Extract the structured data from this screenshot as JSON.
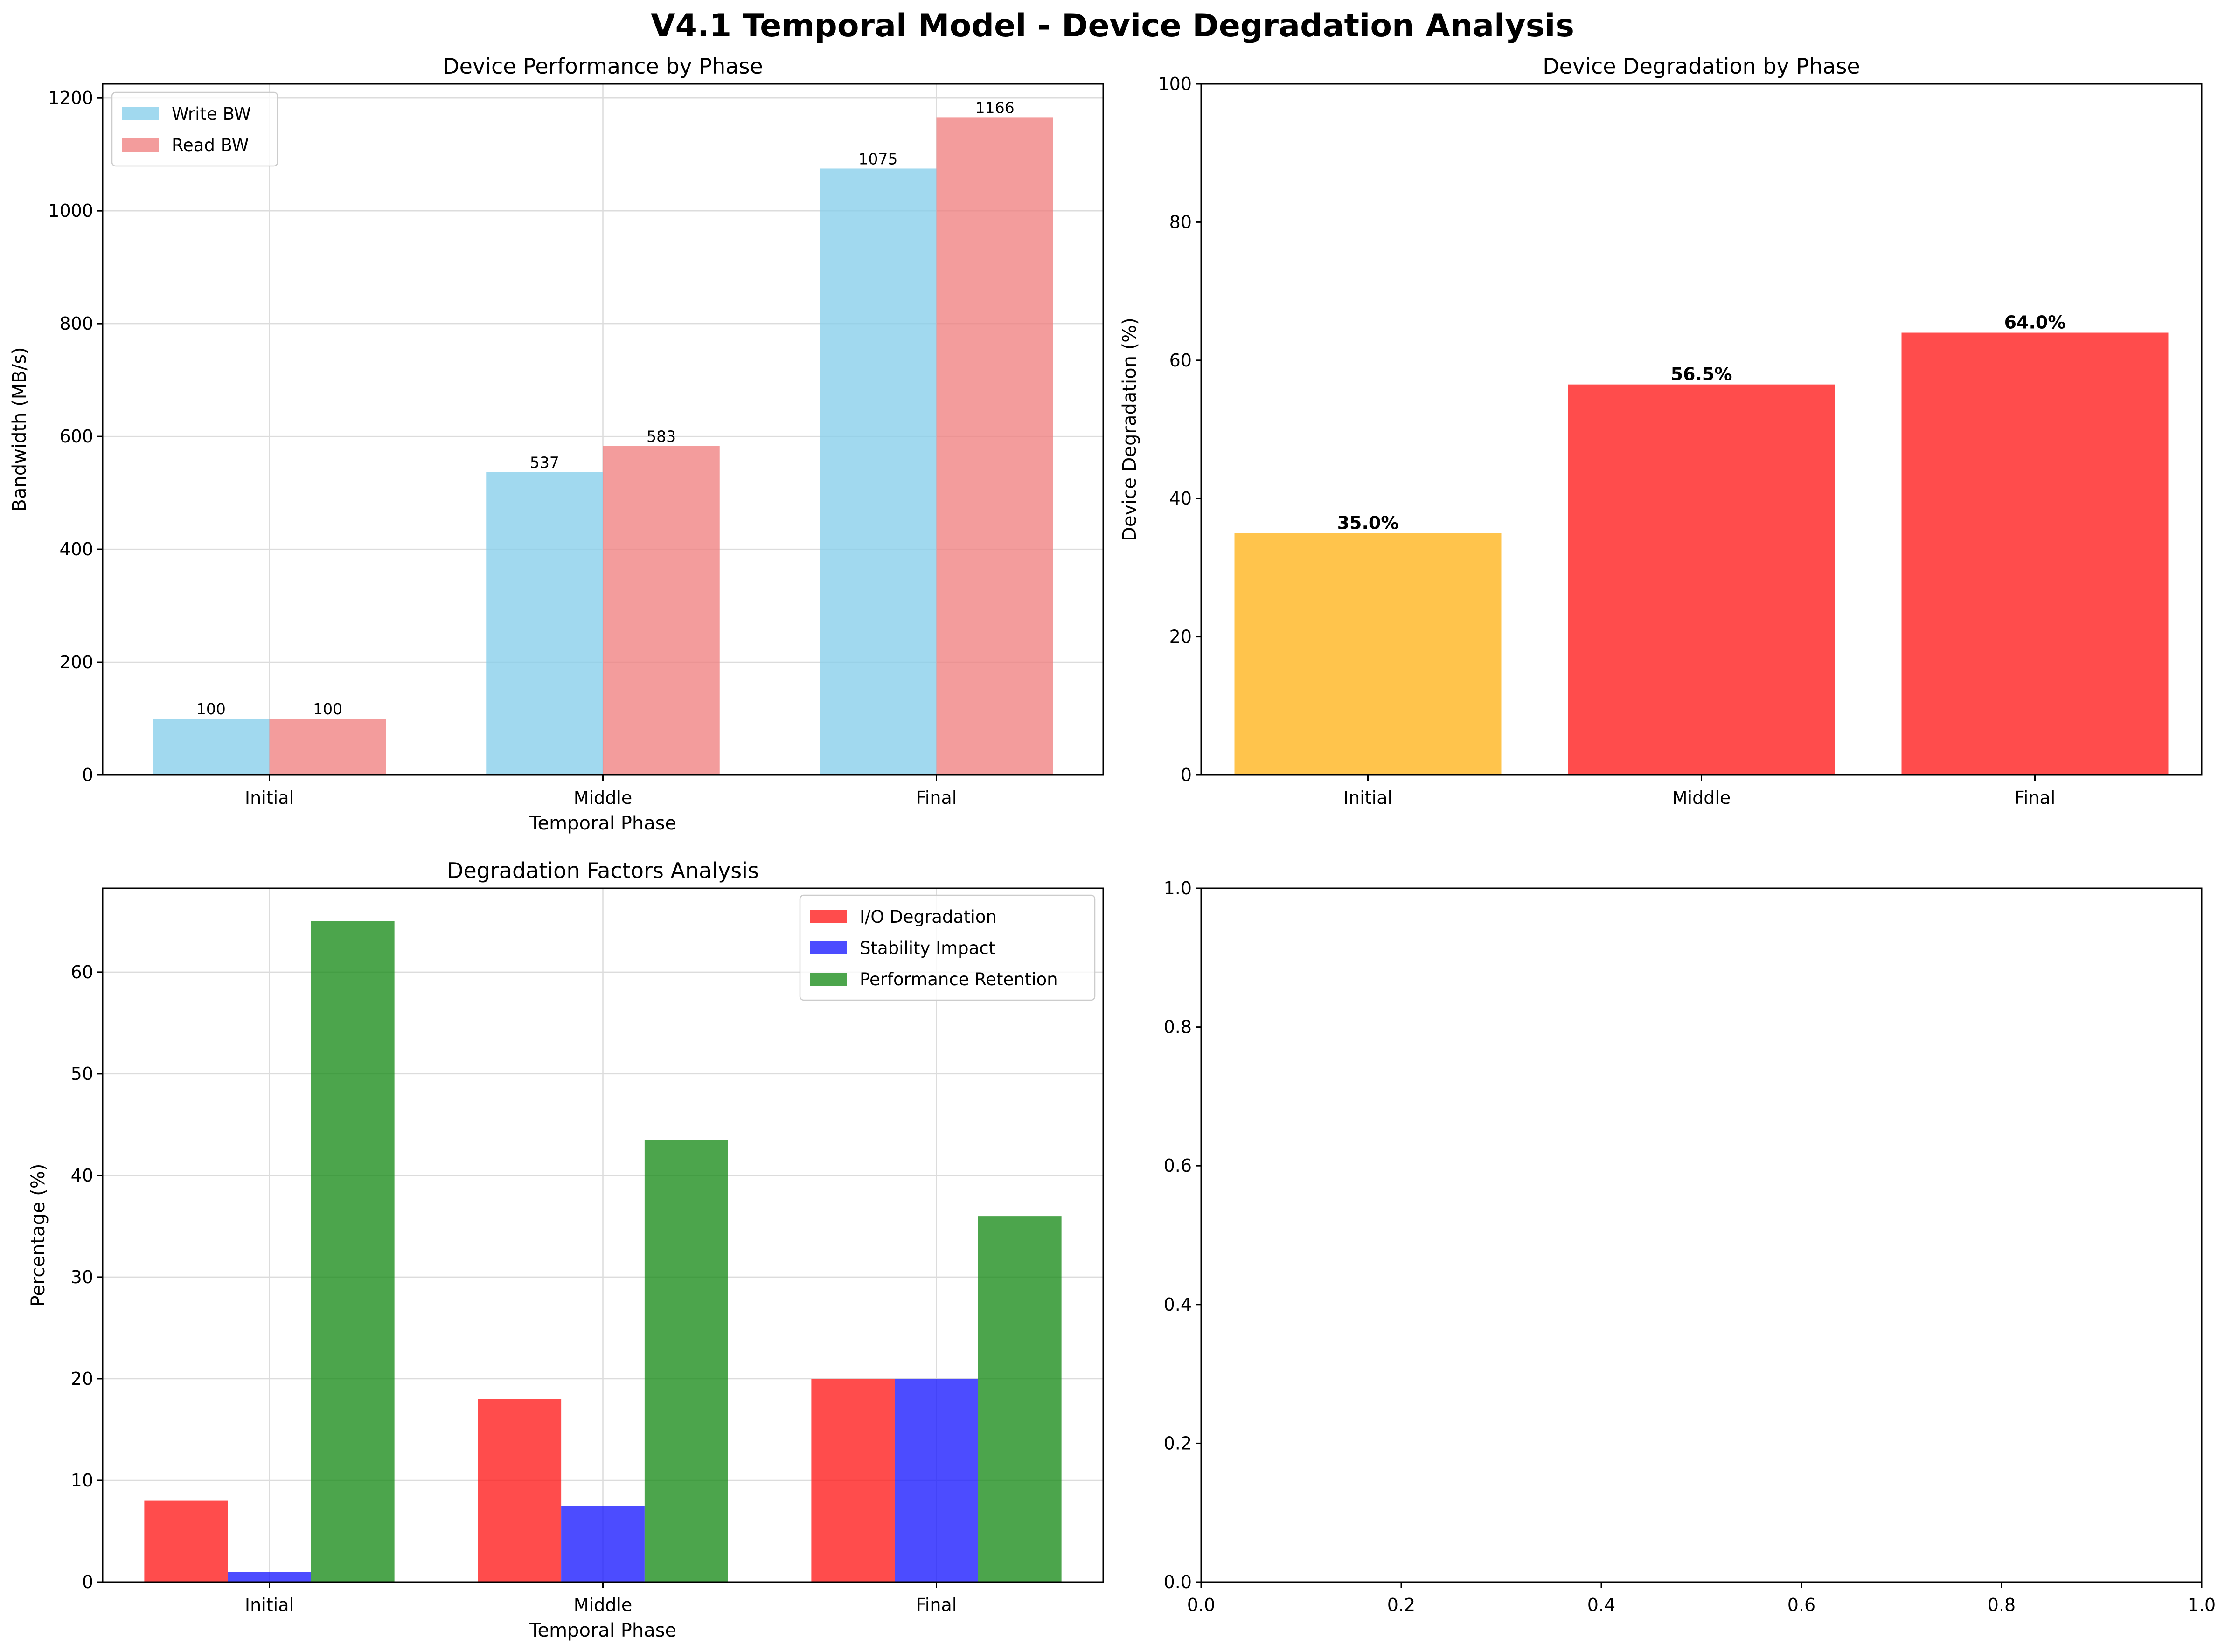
{
  "figure": {
    "suptitle": "V4.1 Temporal Model - Device Degradation Analysis"
  },
  "chart_data": [
    {
      "id": "performance",
      "type": "bar",
      "title": "Device Performance by Phase",
      "xlabel": "Temporal Phase",
      "ylabel": "Bandwidth (MB/s)",
      "categories": [
        "Initial",
        "Middle",
        "Final"
      ],
      "ylim": [
        0,
        1225
      ],
      "yticks": [
        0,
        200,
        400,
        600,
        800,
        1000,
        1200
      ],
      "grid": true,
      "legend_position": "upper left",
      "series": [
        {
          "name": "Write BW",
          "values": [
            100,
            537,
            1075
          ],
          "color": "#87ceeb",
          "labels": [
            "100",
            "537",
            "1075"
          ]
        },
        {
          "name": "Read BW",
          "values": [
            100,
            583,
            1166
          ],
          "color": "#f08080",
          "labels": [
            "100",
            "583",
            "1166"
          ]
        }
      ]
    },
    {
      "id": "degradation",
      "type": "bar",
      "title": "Device Degradation by Phase",
      "xlabel": "",
      "ylabel": "Device Degradation (%)",
      "categories": [
        "Initial",
        "Middle",
        "Final"
      ],
      "ylim": [
        0,
        100
      ],
      "yticks": [
        0,
        20,
        40,
        60,
        80,
        100
      ],
      "grid": false,
      "series": [
        {
          "values": [
            35.0,
            56.5,
            64.0
          ],
          "colors": [
            "#ffb31a",
            "#ff1a1a",
            "#ff1a1a"
          ],
          "labels": [
            "35.0%",
            "56.5%",
            "64.0%"
          ]
        }
      ]
    },
    {
      "id": "factors",
      "type": "bar",
      "title": "Degradation Factors Analysis",
      "xlabel": "Temporal Phase",
      "ylabel": "Percentage (%)",
      "categories": [
        "Initial",
        "Middle",
        "Final"
      ],
      "ylim": [
        0,
        68.25
      ],
      "yticks": [
        0,
        10,
        20,
        30,
        40,
        50,
        60
      ],
      "grid": true,
      "legend_position": "upper right",
      "series": [
        {
          "name": "I/O Degradation",
          "values": [
            8,
            18,
            20
          ],
          "color": "#ff1a1a"
        },
        {
          "name": "Stability Impact",
          "values": [
            1,
            7.5,
            20
          ],
          "color": "#1a1aff"
        },
        {
          "name": "Performance Retention",
          "values": [
            65,
            43.5,
            36
          ],
          "color": "#1a8c1a"
        }
      ]
    },
    {
      "id": "empty",
      "type": "scatter",
      "title": "",
      "xlabel": "",
      "ylabel": "",
      "xlim": [
        0,
        1
      ],
      "ylim": [
        0,
        1
      ],
      "xticks": [
        "0.0",
        "0.2",
        "0.4",
        "0.6",
        "0.8",
        "1.0"
      ],
      "yticks": [
        "0.0",
        "0.2",
        "0.4",
        "0.6",
        "0.8",
        "1.0"
      ],
      "grid": false,
      "series": []
    }
  ]
}
